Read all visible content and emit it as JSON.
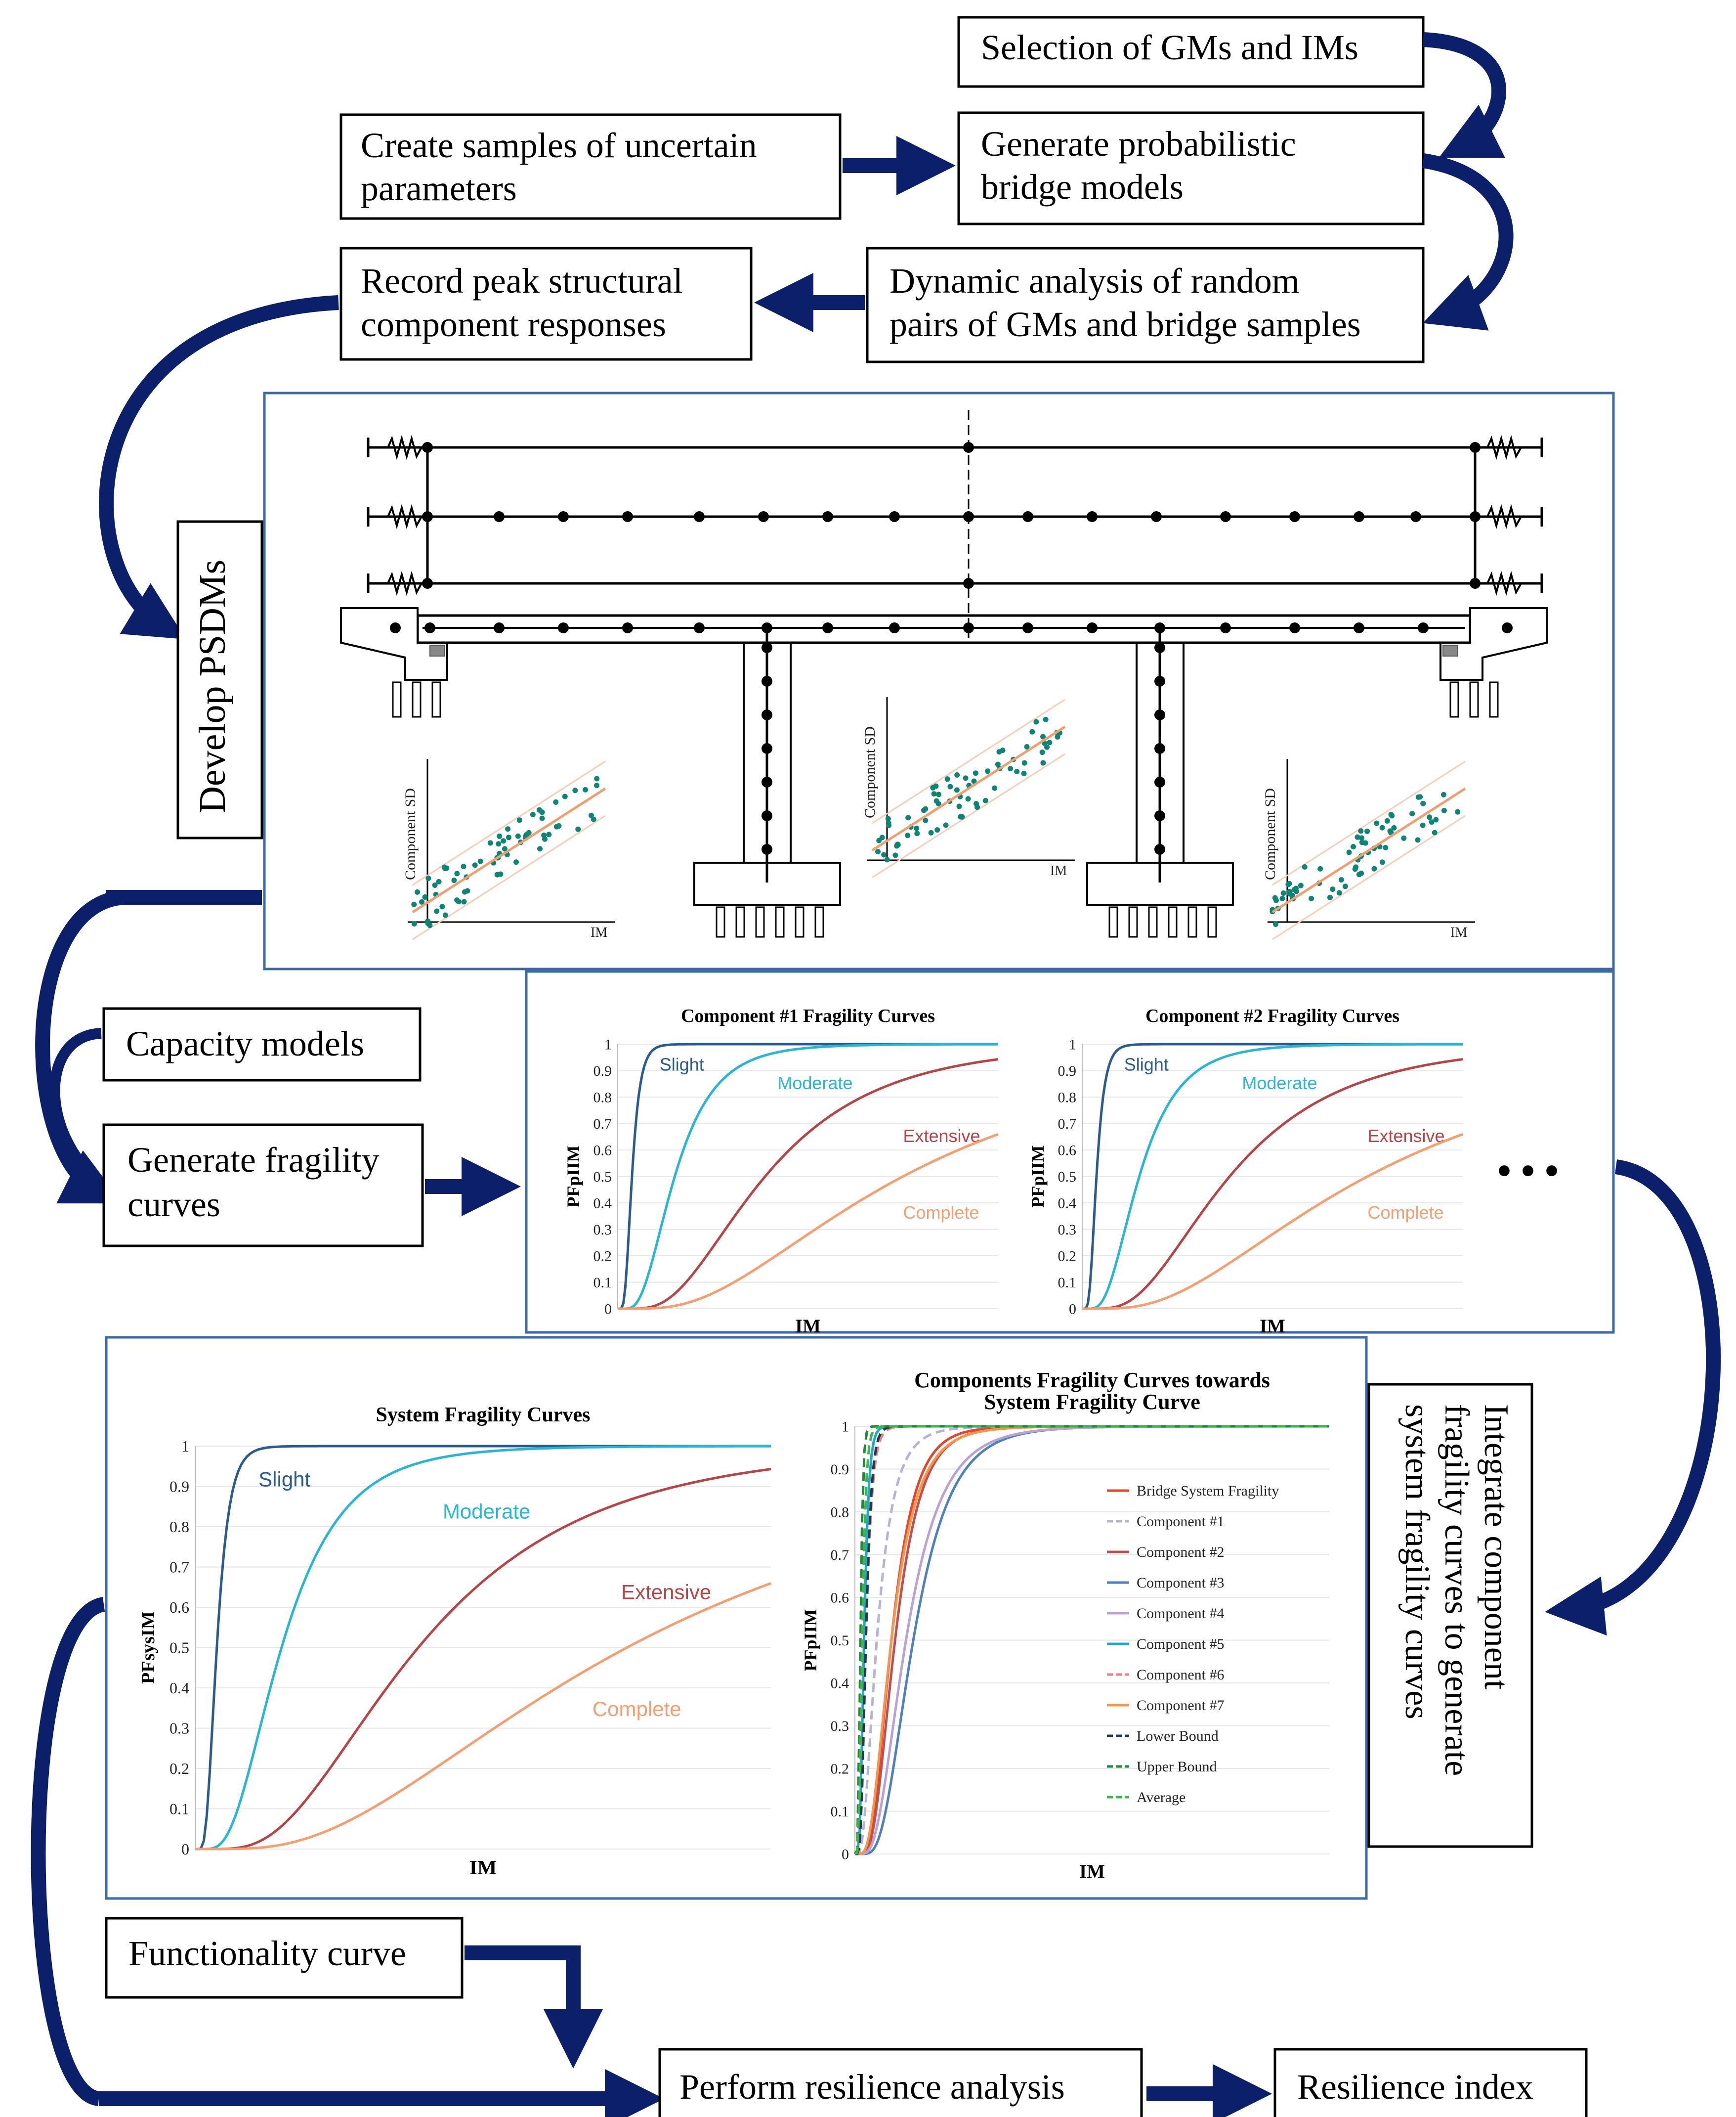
{
  "colors": {
    "arrow": "#0b1f6a",
    "slight": "#2a5c92",
    "moderate": "#29b6d3",
    "extensive": "#b64548",
    "complete": "#f59e70",
    "panel_border": "#3b6aa6",
    "scatter_dot": "#0c8574",
    "fit_line": "#f0a070"
  },
  "flow": {
    "select_gm": "Selection of GMs and IMs",
    "create_samples_1": "Create samples of uncertain",
    "create_samples_2": "parameters",
    "generate_models_1": "Generate probabilistic",
    "generate_models_2": "bridge models",
    "dynamic_1": "Dynamic analysis of random",
    "dynamic_2": "pairs of GMs and bridge samples",
    "record_1": "Record peak structural",
    "record_2": "component responses",
    "develop_psdms": "Develop PSDMs",
    "capacity": "Capacity models",
    "gen_frag_1": "Generate fragility",
    "gen_frag_2": "curves",
    "integrate_1": "Integrate component",
    "integrate_2": "fragility curves to generate",
    "integrate_3": "system fragility curves",
    "functionality": "Functionality curve",
    "perform": "Perform resilience analysis",
    "resilience": "Resilience index",
    "ellipsis": "• • •"
  },
  "psdm": {
    "ylabel": "Component SD",
    "xlabel": "IM"
  },
  "chart_data": [
    {
      "type": "line",
      "title": "Component #1 Fragility Curves",
      "xlabel": "IM",
      "ylabel": "PFpIIM",
      "ylim": [
        0,
        1
      ],
      "yticks": [
        "0",
        "0.1",
        "0.2",
        "0.3",
        "0.4",
        "0.5",
        "0.6",
        "0.7",
        "0.8",
        "0.9",
        "1"
      ],
      "series": [
        {
          "name": "Slight",
          "median": 0.06,
          "beta": 0.45
        },
        {
          "name": "Moderate",
          "median": 0.24,
          "beta": 0.55
        },
        {
          "name": "Extensive",
          "median": 0.62,
          "beta": 0.6
        },
        {
          "name": "Complete",
          "median": 1.2,
          "beta": 0.7
        }
      ]
    },
    {
      "type": "line",
      "title": "Component #2 Fragility Curves",
      "xlabel": "IM",
      "ylabel": "PFpIIM",
      "ylim": [
        0,
        1
      ],
      "yticks": [
        "0",
        "0.1",
        "0.2",
        "0.3",
        "0.4",
        "0.5",
        "0.6",
        "0.7",
        "0.8",
        "0.9",
        "1"
      ],
      "series": [
        {
          "name": "Slight",
          "median": 0.06,
          "beta": 0.45
        },
        {
          "name": "Moderate",
          "median": 0.24,
          "beta": 0.55
        },
        {
          "name": "Extensive",
          "median": 0.62,
          "beta": 0.6
        },
        {
          "name": "Complete",
          "median": 1.2,
          "beta": 0.7
        }
      ]
    },
    {
      "type": "line",
      "title": "System Fragility Curves",
      "xlabel": "IM",
      "ylabel": "PFsysIM",
      "ylim": [
        0,
        1
      ],
      "yticks": [
        "0",
        "0.1",
        "0.2",
        "0.3",
        "0.4",
        "0.5",
        "0.6",
        "0.7",
        "0.8",
        "0.9",
        "1"
      ],
      "series": [
        {
          "name": "Slight",
          "median": 0.06,
          "beta": 0.45
        },
        {
          "name": "Moderate",
          "median": 0.24,
          "beta": 0.55
        },
        {
          "name": "Extensive",
          "median": 0.62,
          "beta": 0.6
        },
        {
          "name": "Complete",
          "median": 1.2,
          "beta": 0.7
        }
      ]
    },
    {
      "type": "line",
      "title_1": "Components Fragility Curves towards",
      "title_2": "System Fragility Curve",
      "xlabel": "IM",
      "ylabel": "PFpIIM",
      "ylim": [
        0,
        1
      ],
      "yticks": [
        "0",
        "0.1",
        "0.2",
        "0.3",
        "0.4",
        "0.5",
        "0.6",
        "0.7",
        "0.8",
        "0.9",
        "1"
      ],
      "series": [
        {
          "name": "Bridge System Fragility",
          "median": 0.1,
          "beta": 0.5,
          "color": "#e8432d",
          "dash": false
        },
        {
          "name": "Component #1",
          "median": 0.06,
          "beta": 0.6,
          "color": "#b7b3d8",
          "dash": true
        },
        {
          "name": "Component #2",
          "median": 0.11,
          "beta": 0.5,
          "color": "#c0504d",
          "dash": false
        },
        {
          "name": "Component #3",
          "median": 0.16,
          "beta": 0.5,
          "color": "#4f81bd",
          "dash": false
        },
        {
          "name": "Component #4",
          "median": 0.14,
          "beta": 0.55,
          "color": "#b9a3d6",
          "dash": false
        },
        {
          "name": "Component #5",
          "median": 0.025,
          "beta": 0.4,
          "color": "#1fa8c9",
          "dash": false
        },
        {
          "name": "Component #6",
          "median": 0.03,
          "beta": 0.45,
          "color": "#f08080",
          "dash": true
        },
        {
          "name": "Component #7",
          "median": 0.1,
          "beta": 0.55,
          "color": "#f79646",
          "dash": false
        },
        {
          "name": "Lower Bound",
          "median": 0.03,
          "beta": 0.4,
          "color": "#1f3b4d",
          "dash": true
        },
        {
          "name": "Upper Bound",
          "median": 0.015,
          "beta": 0.35,
          "color": "#1e8a3a",
          "dash": true
        },
        {
          "name": "Average",
          "median": 0.02,
          "beta": 0.4,
          "color": "#3cb54a",
          "dash": true
        }
      ]
    }
  ]
}
